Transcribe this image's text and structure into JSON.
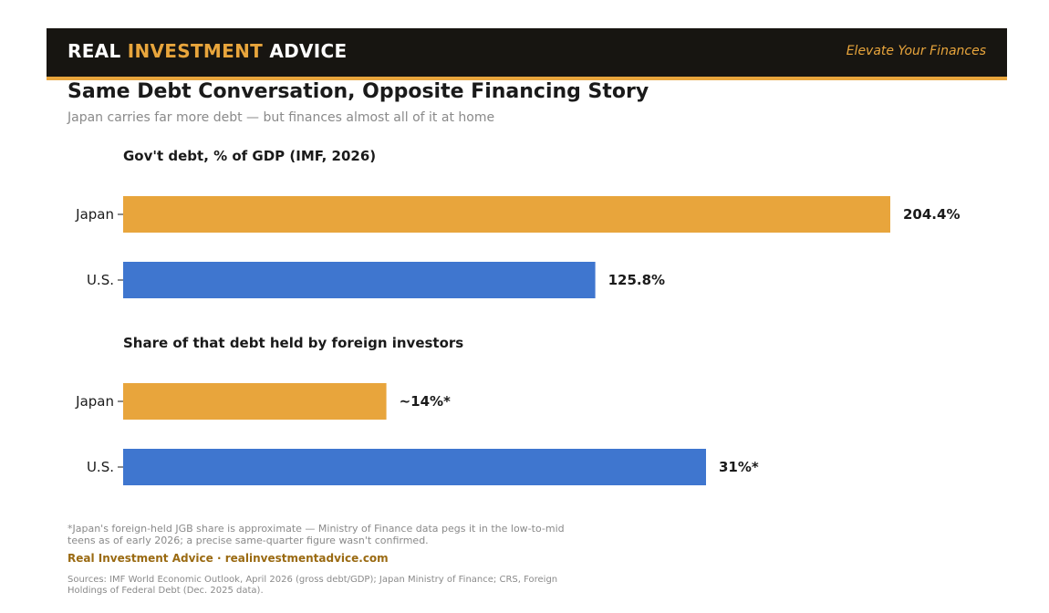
{
  "header": {
    "brand_part1": "REAL ",
    "brand_accent": "INVESTMENT",
    "brand_part2": " ADVICE",
    "tagline": "Elevate Your Finances"
  },
  "title": "Same Debt Conversation, Opposite Financing Story",
  "subtitle": "Japan carries far more debt — but finances almost all of it at home",
  "chart_data": [
    {
      "type": "bar",
      "orientation": "horizontal",
      "title": "Gov't debt, % of GDP (IMF, 2026)",
      "categories": [
        "Japan",
        "U.S."
      ],
      "values": [
        204.4,
        125.8
      ],
      "labels": [
        "204.4%",
        "125.8%"
      ],
      "colors": [
        "#e8a53c",
        "#3f76cf"
      ],
      "xlim": [
        0,
        204.4
      ],
      "grid": false
    },
    {
      "type": "bar",
      "orientation": "horizontal",
      "title": "Share of that debt held by foreign investors",
      "categories": [
        "Japan",
        "U.S."
      ],
      "values": [
        14,
        31
      ],
      "labels": [
        "~14%*",
        "31%*"
      ],
      "colors": [
        "#e8a53c",
        "#3f76cf"
      ],
      "xlim": [
        0,
        40.8
      ],
      "grid": false
    }
  ],
  "footnote": "*Japan's foreign-held JGB share is approximate — Ministry of Finance data pegs it in the low-to-mid teens as of early 2026; a precise same-quarter figure wasn't confirmed.",
  "credit": "Real Investment Advice · realinvestmentadvice.com",
  "sources": "Sources: IMF World Economic Outlook, April 2026 (gross debt/GDP); Japan Ministry of Finance; CRS, Foreign Holdings of Federal Debt (Dec. 2025 data)."
}
